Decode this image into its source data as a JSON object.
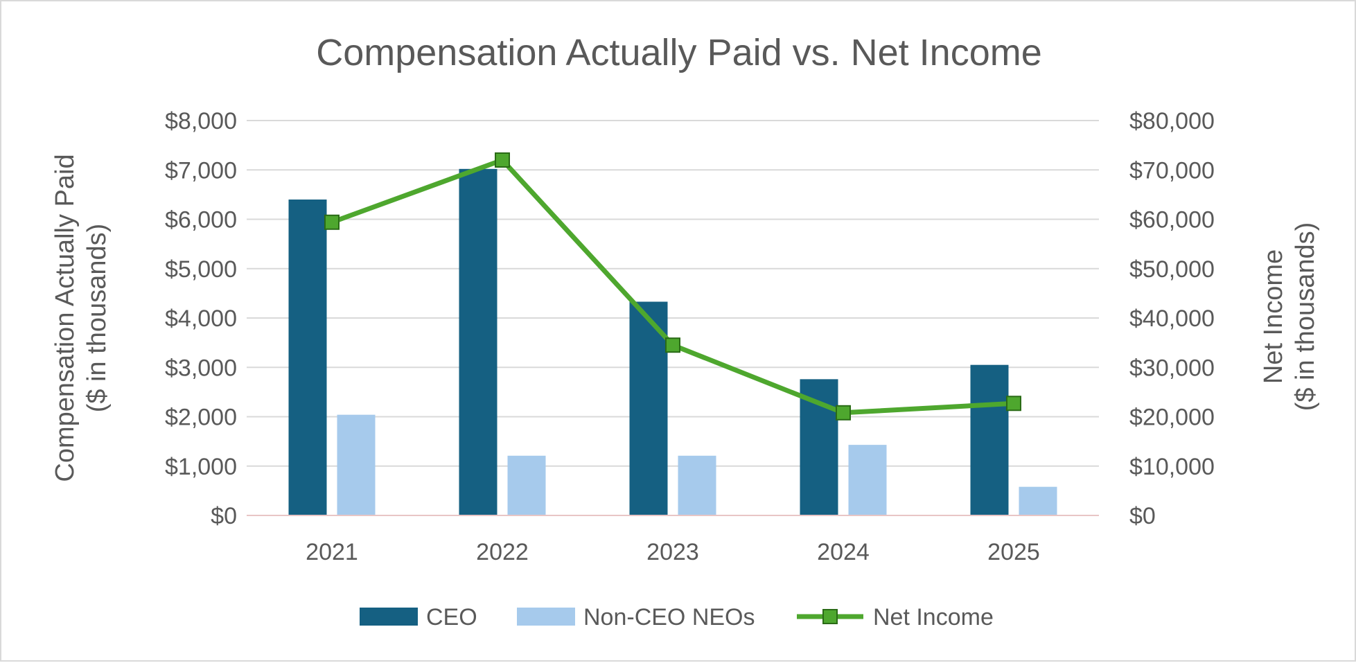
{
  "chart_data": {
    "type": "bar",
    "title": "Compensation Actually Paid vs. Net Income",
    "categories": [
      "2021",
      "2022",
      "2023",
      "2024",
      "2025"
    ],
    "ylabel_left": [
      "Compensation Actually Paid",
      "($ in thousands)"
    ],
    "ylabel_right": [
      "Net Income",
      "($ in thousands)"
    ],
    "ylim_left": [
      0,
      8000
    ],
    "ylim_right": [
      0,
      80000
    ],
    "yticks_left": [
      "$0",
      "$1,000",
      "$2,000",
      "$3,000",
      "$4,000",
      "$5,000",
      "$6,000",
      "$7,000",
      "$8,000"
    ],
    "yticks_right": [
      "$0",
      "$10,000",
      "$20,000",
      "$30,000",
      "$40,000",
      "$50,000",
      "$60,000",
      "$70,000",
      "$80,000"
    ],
    "grid": true,
    "legend_position": "bottom",
    "series": [
      {
        "name": "CEO",
        "type": "bar",
        "axis": "left",
        "color": "#156082",
        "values": [
          6400,
          7020,
          4330,
          2760,
          3050
        ]
      },
      {
        "name": "Non-CEO NEOs",
        "type": "bar",
        "axis": "left",
        "color": "#a6caec",
        "values": [
          2040,
          1210,
          1210,
          1430,
          580
        ]
      },
      {
        "name": "Net Income",
        "type": "line",
        "axis": "right",
        "color": "#4ea72e",
        "marker": "square",
        "values": [
          59400,
          72000,
          34500,
          20800,
          22700
        ]
      }
    ]
  }
}
